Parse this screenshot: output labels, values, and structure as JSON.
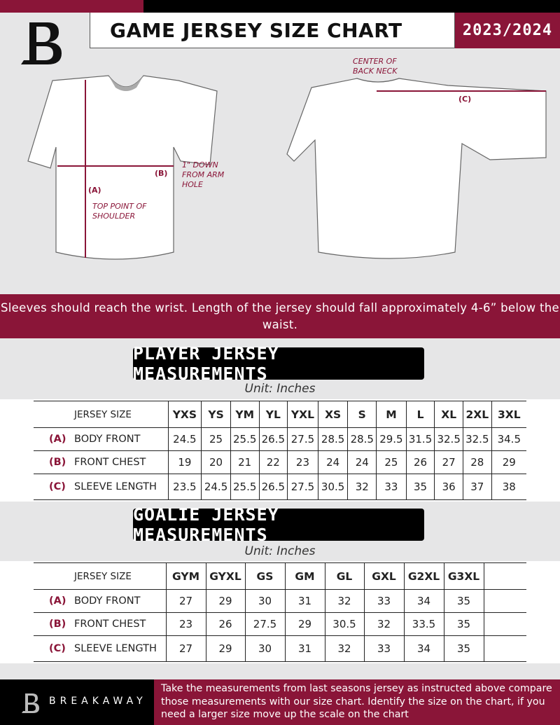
{
  "header": {
    "title": "GAME JERSEY SIZE CHART",
    "season": "2023/2024"
  },
  "diagram": {
    "center_back_neck": "CENTER OF BACK NECK",
    "label_a": "(A)",
    "label_b": "(B)",
    "label_c": "(C)",
    "down_from_arm": "1\" DOWN FROM ARM HOLE",
    "top_point": "TOP POINT OF SHOULDER"
  },
  "band_text": "Sleeves should reach the wrist. Length of the jersey should fall approximately 4-6” below the waist.",
  "player": {
    "heading": "PLAYER JERSEY MEASUREMENTS",
    "unit": "Unit: Inches",
    "size_label": "JERSEY SIZE",
    "sizes": [
      "YXS",
      "YS",
      "YM",
      "YL",
      "YXL",
      "XS",
      "S",
      "M",
      "L",
      "XL",
      "2XL",
      "3XL"
    ],
    "rows": [
      {
        "letter": "(A)",
        "name": "BODY FRONT",
        "values": [
          "24.5",
          "25",
          "25.5",
          "26.5",
          "27.5",
          "28.5",
          "28.5",
          "29.5",
          "31.5",
          "32.5",
          "32.5",
          "34.5"
        ]
      },
      {
        "letter": "(B)",
        "name": "FRONT CHEST",
        "values": [
          "19",
          "20",
          "21",
          "22",
          "23",
          "24",
          "24",
          "25",
          "26",
          "27",
          "28",
          "29"
        ]
      },
      {
        "letter": "(C)",
        "name": "SLEEVE LENGTH",
        "values": [
          "23.5",
          "24.5",
          "25.5",
          "26.5",
          "27.5",
          "30.5",
          "32",
          "33",
          "35",
          "36",
          "37",
          "38"
        ]
      }
    ]
  },
  "goalie": {
    "heading": "GOALIE JERSEY MEASUREMENTS",
    "unit": "Unit: Inches",
    "size_label": "JERSEY SIZE",
    "sizes": [
      "GYM",
      "GYXL",
      "GS",
      "GM",
      "GL",
      "GXL",
      "G2XL",
      "G3XL",
      ""
    ],
    "rows": [
      {
        "letter": "(A)",
        "name": "BODY FRONT",
        "values": [
          "27",
          "29",
          "30",
          "31",
          "32",
          "33",
          "34",
          "35",
          ""
        ]
      },
      {
        "letter": "(B)",
        "name": "FRONT CHEST",
        "values": [
          "23",
          "26",
          "27.5",
          "29",
          "30.5",
          "32",
          "33.5",
          "35",
          ""
        ]
      },
      {
        "letter": "(C)",
        "name": "SLEEVE LENGTH",
        "values": [
          "27",
          "29",
          "30",
          "31",
          "32",
          "33",
          "34",
          "35",
          ""
        ]
      }
    ]
  },
  "footer": {
    "brand": "BREAKAWAY",
    "text": "Take the measurements from last seasons jersey as instructed above compare those measurements  with our size chart. Identify the size on the chart, if you need a larger size move up the scale on the chart"
  },
  "colors": {
    "accent": "#8a1538",
    "dark": "#000000",
    "background": "#e6e6e7"
  }
}
